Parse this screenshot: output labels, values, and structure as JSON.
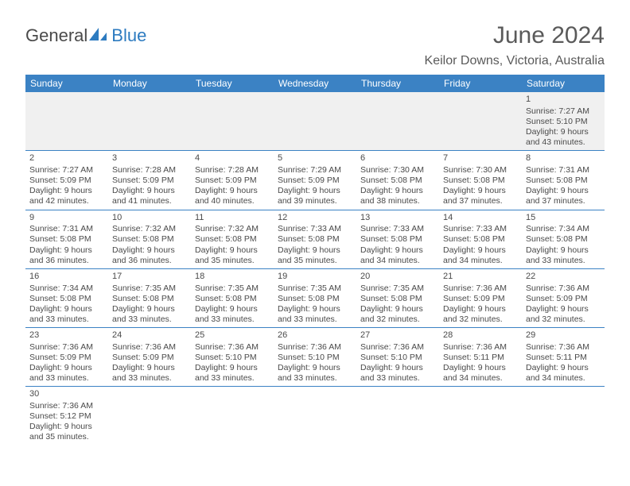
{
  "logo": {
    "part1": "General",
    "part2": "Blue"
  },
  "title": "June 2024",
  "location": "Keilor Downs, Victoria, Australia",
  "colors": {
    "header_bg": "#3b82c4",
    "header_fg": "#ffffff",
    "text": "#4a4a4a",
    "accent": "#2d7bc0",
    "row_border": "#3b82c4",
    "first_row_bg": "#f0f0f0"
  },
  "days_of_week": [
    "Sunday",
    "Monday",
    "Tuesday",
    "Wednesday",
    "Thursday",
    "Friday",
    "Saturday"
  ],
  "weeks": [
    [
      null,
      null,
      null,
      null,
      null,
      null,
      {
        "n": "1",
        "sunrise": "Sunrise: 7:27 AM",
        "sunset": "Sunset: 5:10 PM",
        "day1": "Daylight: 9 hours",
        "day2": "and 43 minutes."
      }
    ],
    [
      {
        "n": "2",
        "sunrise": "Sunrise: 7:27 AM",
        "sunset": "Sunset: 5:09 PM",
        "day1": "Daylight: 9 hours",
        "day2": "and 42 minutes."
      },
      {
        "n": "3",
        "sunrise": "Sunrise: 7:28 AM",
        "sunset": "Sunset: 5:09 PM",
        "day1": "Daylight: 9 hours",
        "day2": "and 41 minutes."
      },
      {
        "n": "4",
        "sunrise": "Sunrise: 7:28 AM",
        "sunset": "Sunset: 5:09 PM",
        "day1": "Daylight: 9 hours",
        "day2": "and 40 minutes."
      },
      {
        "n": "5",
        "sunrise": "Sunrise: 7:29 AM",
        "sunset": "Sunset: 5:09 PM",
        "day1": "Daylight: 9 hours",
        "day2": "and 39 minutes."
      },
      {
        "n": "6",
        "sunrise": "Sunrise: 7:30 AM",
        "sunset": "Sunset: 5:08 PM",
        "day1": "Daylight: 9 hours",
        "day2": "and 38 minutes."
      },
      {
        "n": "7",
        "sunrise": "Sunrise: 7:30 AM",
        "sunset": "Sunset: 5:08 PM",
        "day1": "Daylight: 9 hours",
        "day2": "and 37 minutes."
      },
      {
        "n": "8",
        "sunrise": "Sunrise: 7:31 AM",
        "sunset": "Sunset: 5:08 PM",
        "day1": "Daylight: 9 hours",
        "day2": "and 37 minutes."
      }
    ],
    [
      {
        "n": "9",
        "sunrise": "Sunrise: 7:31 AM",
        "sunset": "Sunset: 5:08 PM",
        "day1": "Daylight: 9 hours",
        "day2": "and 36 minutes."
      },
      {
        "n": "10",
        "sunrise": "Sunrise: 7:32 AM",
        "sunset": "Sunset: 5:08 PM",
        "day1": "Daylight: 9 hours",
        "day2": "and 36 minutes."
      },
      {
        "n": "11",
        "sunrise": "Sunrise: 7:32 AM",
        "sunset": "Sunset: 5:08 PM",
        "day1": "Daylight: 9 hours",
        "day2": "and 35 minutes."
      },
      {
        "n": "12",
        "sunrise": "Sunrise: 7:33 AM",
        "sunset": "Sunset: 5:08 PM",
        "day1": "Daylight: 9 hours",
        "day2": "and 35 minutes."
      },
      {
        "n": "13",
        "sunrise": "Sunrise: 7:33 AM",
        "sunset": "Sunset: 5:08 PM",
        "day1": "Daylight: 9 hours",
        "day2": "and 34 minutes."
      },
      {
        "n": "14",
        "sunrise": "Sunrise: 7:33 AM",
        "sunset": "Sunset: 5:08 PM",
        "day1": "Daylight: 9 hours",
        "day2": "and 34 minutes."
      },
      {
        "n": "15",
        "sunrise": "Sunrise: 7:34 AM",
        "sunset": "Sunset: 5:08 PM",
        "day1": "Daylight: 9 hours",
        "day2": "and 33 minutes."
      }
    ],
    [
      {
        "n": "16",
        "sunrise": "Sunrise: 7:34 AM",
        "sunset": "Sunset: 5:08 PM",
        "day1": "Daylight: 9 hours",
        "day2": "and 33 minutes."
      },
      {
        "n": "17",
        "sunrise": "Sunrise: 7:35 AM",
        "sunset": "Sunset: 5:08 PM",
        "day1": "Daylight: 9 hours",
        "day2": "and 33 minutes."
      },
      {
        "n": "18",
        "sunrise": "Sunrise: 7:35 AM",
        "sunset": "Sunset: 5:08 PM",
        "day1": "Daylight: 9 hours",
        "day2": "and 33 minutes."
      },
      {
        "n": "19",
        "sunrise": "Sunrise: 7:35 AM",
        "sunset": "Sunset: 5:08 PM",
        "day1": "Daylight: 9 hours",
        "day2": "and 33 minutes."
      },
      {
        "n": "20",
        "sunrise": "Sunrise: 7:35 AM",
        "sunset": "Sunset: 5:08 PM",
        "day1": "Daylight: 9 hours",
        "day2": "and 32 minutes."
      },
      {
        "n": "21",
        "sunrise": "Sunrise: 7:36 AM",
        "sunset": "Sunset: 5:09 PM",
        "day1": "Daylight: 9 hours",
        "day2": "and 32 minutes."
      },
      {
        "n": "22",
        "sunrise": "Sunrise: 7:36 AM",
        "sunset": "Sunset: 5:09 PM",
        "day1": "Daylight: 9 hours",
        "day2": "and 32 minutes."
      }
    ],
    [
      {
        "n": "23",
        "sunrise": "Sunrise: 7:36 AM",
        "sunset": "Sunset: 5:09 PM",
        "day1": "Daylight: 9 hours",
        "day2": "and 33 minutes."
      },
      {
        "n": "24",
        "sunrise": "Sunrise: 7:36 AM",
        "sunset": "Sunset: 5:09 PM",
        "day1": "Daylight: 9 hours",
        "day2": "and 33 minutes."
      },
      {
        "n": "25",
        "sunrise": "Sunrise: 7:36 AM",
        "sunset": "Sunset: 5:10 PM",
        "day1": "Daylight: 9 hours",
        "day2": "and 33 minutes."
      },
      {
        "n": "26",
        "sunrise": "Sunrise: 7:36 AM",
        "sunset": "Sunset: 5:10 PM",
        "day1": "Daylight: 9 hours",
        "day2": "and 33 minutes."
      },
      {
        "n": "27",
        "sunrise": "Sunrise: 7:36 AM",
        "sunset": "Sunset: 5:10 PM",
        "day1": "Daylight: 9 hours",
        "day2": "and 33 minutes."
      },
      {
        "n": "28",
        "sunrise": "Sunrise: 7:36 AM",
        "sunset": "Sunset: 5:11 PM",
        "day1": "Daylight: 9 hours",
        "day2": "and 34 minutes."
      },
      {
        "n": "29",
        "sunrise": "Sunrise: 7:36 AM",
        "sunset": "Sunset: 5:11 PM",
        "day1": "Daylight: 9 hours",
        "day2": "and 34 minutes."
      }
    ],
    [
      {
        "n": "30",
        "sunrise": "Sunrise: 7:36 AM",
        "sunset": "Sunset: 5:12 PM",
        "day1": "Daylight: 9 hours",
        "day2": "and 35 minutes."
      },
      null,
      null,
      null,
      null,
      null,
      null
    ]
  ]
}
